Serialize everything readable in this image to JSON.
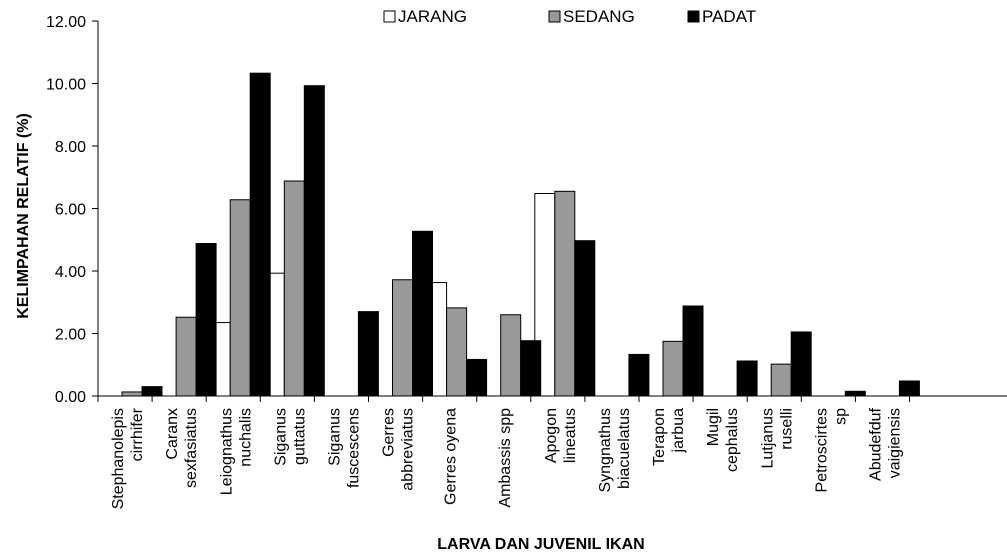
{
  "chart_data": {
    "type": "bar",
    "title": "",
    "xlabel": "LARVA DAN JUVENIL IKAN",
    "ylabel": "KELIMPAHAN RELATIF (%)",
    "ylim": [
      0,
      12
    ],
    "yticks": [
      "0.00",
      "2.00",
      "4.00",
      "6.00",
      "8.00",
      "10.00",
      "12.00"
    ],
    "legend_position": "top",
    "categories": [
      [
        "Stephanolepis",
        "cirrhifer"
      ],
      [
        "Caranx",
        "sexfasiatus"
      ],
      [
        "Leiognathus",
        "nuchalis"
      ],
      [
        "Siganus",
        "guttatus"
      ],
      [
        "Siganus",
        "fuscescens"
      ],
      [
        "Gerres",
        "abbreviatus"
      ],
      [
        "Gerres oyena"
      ],
      [
        "Ambassis spp"
      ],
      [
        "Apogon",
        "lineatus"
      ],
      [
        "Syngnathus",
        "biacuelatus"
      ],
      [
        "Terapon",
        "jarbua"
      ],
      [
        "Mugil",
        "cephalus"
      ],
      [
        "Lutjanus",
        "ruselli"
      ],
      [
        "Petroscirtes",
        "sp"
      ],
      [
        "Abudefduf",
        "vaigiensis"
      ]
    ],
    "series": [
      {
        "name": "JARANG",
        "color": "#ffffff",
        "values": [
          0,
          0,
          2.35,
          3.93,
          0,
          0,
          3.63,
          0,
          6.48,
          0,
          0,
          0,
          0,
          0,
          0
        ]
      },
      {
        "name": "SEDANG",
        "color": "#999999",
        "values": [
          0.13,
          2.52,
          6.28,
          6.88,
          0,
          3.72,
          2.82,
          2.6,
          6.55,
          0,
          1.75,
          0,
          1.02,
          0,
          0
        ]
      },
      {
        "name": "PADAT",
        "color": "#000000",
        "values": [
          0.3,
          4.88,
          10.33,
          9.93,
          2.7,
          5.27,
          1.17,
          1.77,
          4.97,
          1.33,
          2.88,
          1.12,
          2.05,
          0.15,
          0.48
        ]
      }
    ]
  }
}
